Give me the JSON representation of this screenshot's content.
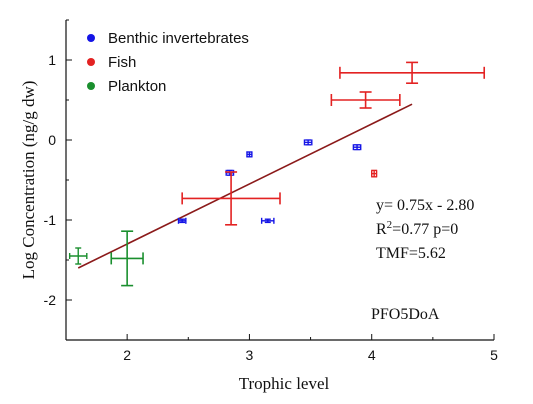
{
  "chart_data": {
    "type": "scatter",
    "xlabel": "Trophic level",
    "ylabel": "Log Concentration (ng/g dw)",
    "xlim": [
      1.5,
      5.0
    ],
    "ylim": [
      -2.5,
      1.5
    ],
    "xticks": [
      2,
      3,
      4,
      5
    ],
    "yticks": [
      -2,
      -1,
      0,
      1
    ],
    "legend": {
      "placement": "top-left"
    },
    "series": [
      {
        "name": "Benthic invertebrates",
        "color": "#1414e6",
        "points": [
          {
            "x": 2.45,
            "y": -1.01,
            "xerr": 0.03,
            "yerr": 0.02
          },
          {
            "x": 2.84,
            "y": -0.41,
            "xerr": 0.03,
            "yerr": 0.03
          },
          {
            "x": 3.0,
            "y": -0.18,
            "xerr": 0.02,
            "yerr": 0.03
          },
          {
            "x": 3.15,
            "y": -1.01,
            "xerr": 0.05,
            "yerr": 0.02
          },
          {
            "x": 3.48,
            "y": -0.03,
            "xerr": 0.03,
            "yerr": 0.03
          },
          {
            "x": 3.88,
            "y": -0.09,
            "xerr": 0.03,
            "yerr": 0.03
          }
        ]
      },
      {
        "name": "Fish",
        "color": "#e32222",
        "points": [
          {
            "x": 2.85,
            "y": -0.73,
            "xerr": 0.4,
            "yerr": 0.33
          },
          {
            "x": 3.95,
            "y": 0.5,
            "xerr": 0.28,
            "yerr": 0.1
          },
          {
            "x": 4.02,
            "y": -0.42,
            "xerr": 0.02,
            "yerr": 0.04
          },
          {
            "x": 4.33,
            "y": 0.84,
            "xerr": 0.59,
            "yerr": 0.13
          }
        ]
      },
      {
        "name": "Plankton",
        "color": "#1a8f2e",
        "points": [
          {
            "x": 1.6,
            "y": -1.45,
            "xerr": 0.07,
            "yerr": 0.1
          },
          {
            "x": 2.0,
            "y": -1.48,
            "xerr": 0.13,
            "yerr": 0.34
          }
        ]
      }
    ],
    "regression": {
      "color": "#8b1a1a",
      "slope": 0.75,
      "intercept": -2.8,
      "x_range": [
        1.6,
        4.33
      ]
    },
    "annotations": {
      "equation": "y= 0.75x - 2.80",
      "r2_prefix": "R",
      "r2_sup": "2",
      "r2_rest": "=0.77 p=0",
      "tmf": "TMF=5.62",
      "compound": "PFO5DoA"
    }
  }
}
